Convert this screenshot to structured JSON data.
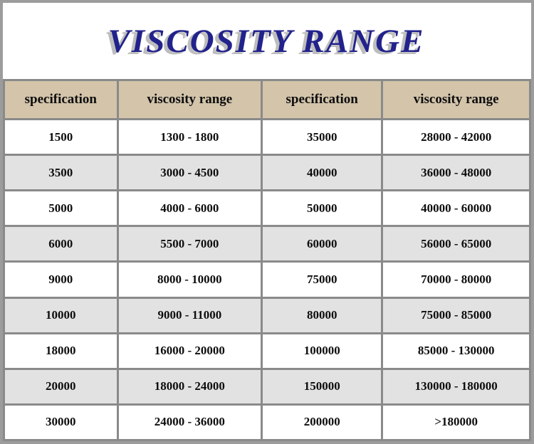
{
  "title": "VISCOSITY RANGE",
  "chart_data": {
    "type": "table",
    "title": "VISCOSITY RANGE",
    "columns": [
      "specification",
      "viscosity range",
      "specification",
      "viscosity range"
    ],
    "rows": [
      [
        "1500",
        "1300 - 1800",
        "35000",
        "28000 - 42000"
      ],
      [
        "3500",
        "3000 - 4500",
        "40000",
        "36000 - 48000"
      ],
      [
        "5000",
        "4000 - 6000",
        "50000",
        "40000 - 60000"
      ],
      [
        "6000",
        "5500 - 7000",
        "60000",
        "56000 - 65000"
      ],
      [
        "9000",
        "8000 - 10000",
        "75000",
        "70000 - 80000"
      ],
      [
        "10000",
        "9000 - 11000",
        "80000",
        "75000 - 85000"
      ],
      [
        "18000",
        "16000 - 20000",
        "100000",
        "85000 - 130000"
      ],
      [
        "20000",
        "18000 - 24000",
        "150000",
        "130000 - 180000"
      ],
      [
        "30000",
        "24000 - 36000",
        "200000",
        ">180000"
      ]
    ]
  },
  "colors": {
    "frame": "#9c9c9c",
    "border": "#8a8a8a",
    "header_bg": "#d3c4aa",
    "row_alt_bg": "#e2e2e2",
    "title_text": "#22228c",
    "title_shadow": "#bdbdbd",
    "cell_text": "#0d0d0d"
  }
}
